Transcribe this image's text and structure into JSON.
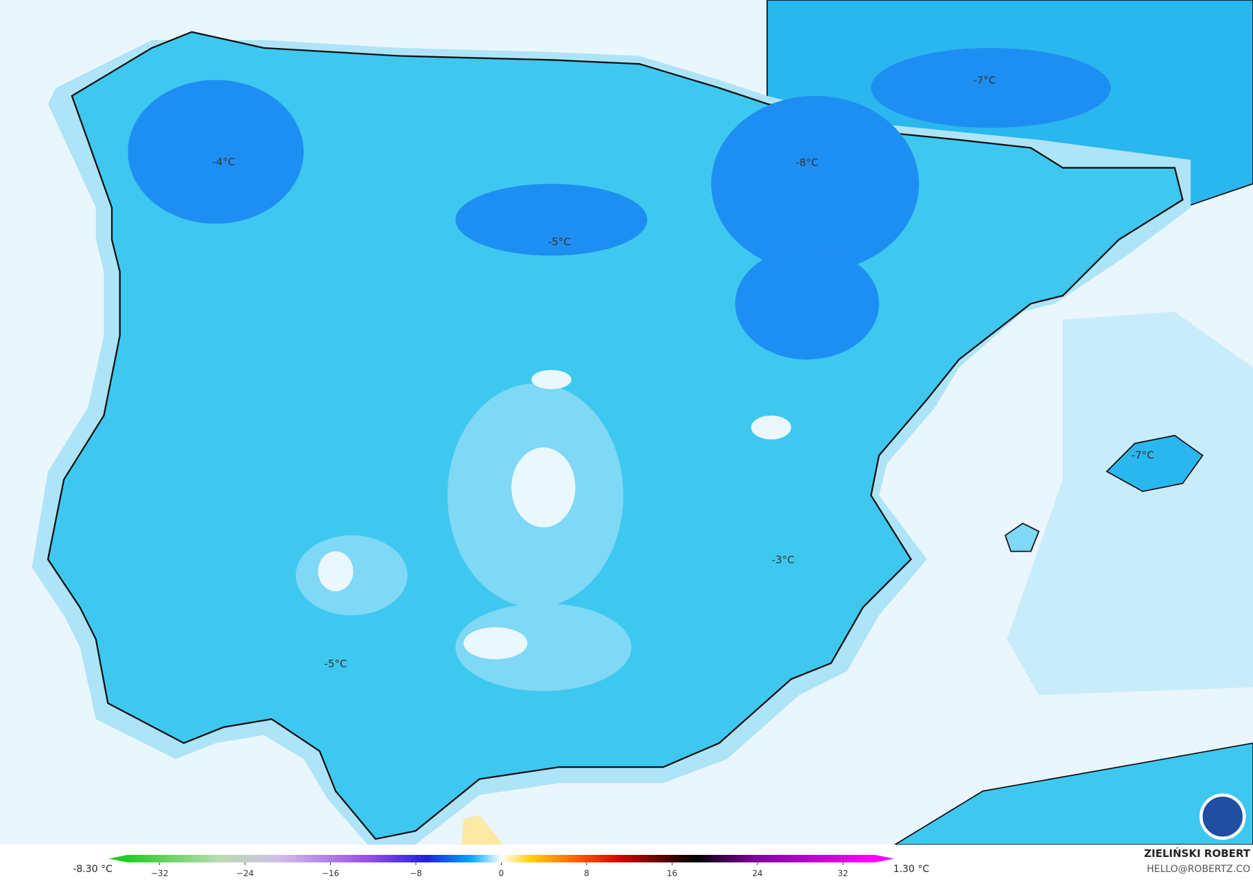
{
  "map": {
    "labels": [
      "-4°C",
      "-5°C",
      "-8°C",
      "-7°C",
      "-5°C",
      "-3°C",
      "-7°C"
    ]
  },
  "colorbar": {
    "min_label": "-8.30 °C",
    "max_label": "1.30 °C",
    "lim": [
      -35,
      35
    ],
    "ticks": [
      {
        "value": -32,
        "label": "−32"
      },
      {
        "value": -24,
        "label": "−24"
      },
      {
        "value": -16,
        "label": "−16"
      },
      {
        "value": -8,
        "label": "−8"
      },
      0,
      8,
      16,
      24,
      32
    ]
  },
  "credit": {
    "name": "ZIELIŃSKI ROBERT",
    "email": "HELLO@ROBERTZ.CO"
  }
}
